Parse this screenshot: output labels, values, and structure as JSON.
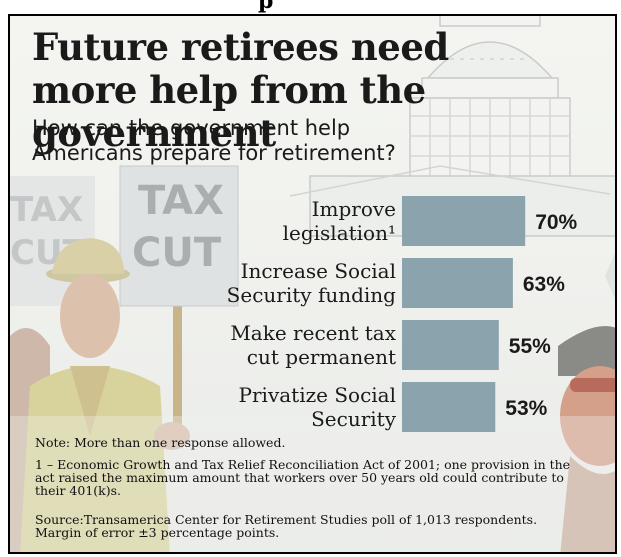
{
  "header_fragment": "p",
  "title": "Future retirees need more help from the government",
  "subtitle": "How can the government help Americans prepare for retirement?",
  "signs": {
    "left": [
      "TAX",
      "CUT"
    ],
    "center": [
      "TAX",
      "CUT"
    ]
  },
  "chart_data": {
    "type": "bar",
    "orientation": "horizontal",
    "categories": [
      [
        "Improve",
        "legislation¹"
      ],
      [
        "Increase Social",
        "Security funding"
      ],
      [
        "Make recent tax",
        "cut permanent"
      ],
      [
        "Privatize Social",
        "Security"
      ]
    ],
    "values": [
      70,
      63,
      55,
      53
    ],
    "value_labels": [
      "70%",
      "63%",
      "55%",
      "53%"
    ],
    "unit": "%",
    "bar_color": "#8aa3ad",
    "grid": false,
    "legend": "none"
  },
  "notes": {
    "note": "Note: More than one response allowed.",
    "footnote": "1 – Economic Growth and Tax Relief Reconciliation Act of 2001; one provision in the act raised the maximum amount that workers over 50 years old could contribute to their 401(k)s.",
    "source": "Source:Transamerica Center for Retirement Studies poll of 1,013 respondents. Margin of error ±3 percentage points."
  }
}
